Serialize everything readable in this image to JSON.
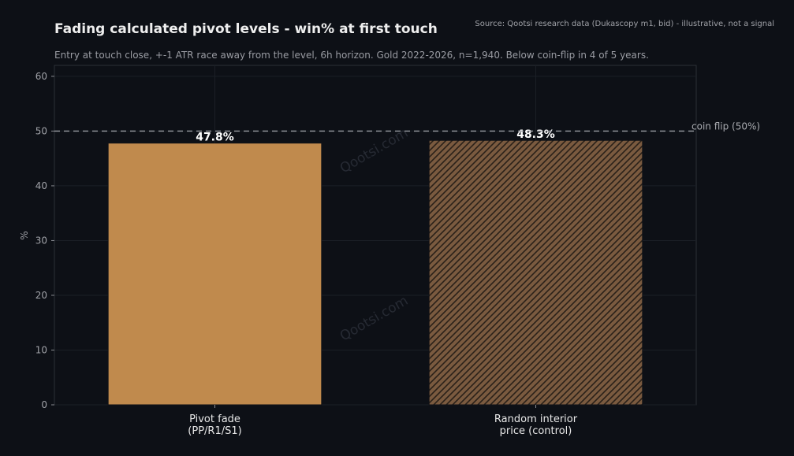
{
  "chart_data": {
    "type": "bar",
    "title": "Fading calculated pivot levels - win% at first touch",
    "subtitle": "Entry at touch close, +-1 ATR race away from the level, 6h horizon. Gold 2022-2026, n=1,940. Below coin-flip in 4 of 5 years.",
    "source": "Source: Qootsi research data (Dukascopy m1, bid) - illustrative, not a signal",
    "ylabel": "%",
    "ylim": [
      0,
      62
    ],
    "yticks": [
      0,
      10,
      20,
      30,
      40,
      50,
      60
    ],
    "categories": [
      [
        "Pivot fade",
        "(PP/R1/S1)"
      ],
      [
        "Random interior",
        "price (control)"
      ]
    ],
    "values": [
      47.8,
      48.3
    ],
    "data_labels": [
      "47.8%",
      "48.3%"
    ],
    "bar_colors": [
      "#c08a4d",
      "#7a5a3f"
    ],
    "bar_styles": [
      "solid",
      "hatched"
    ],
    "reference_line": {
      "value": 50,
      "label": "coin flip (50%)",
      "color": "#9a9ca3",
      "style": "dashed"
    },
    "watermark": "Qootsi.com",
    "grid": true,
    "legend": "none"
  }
}
